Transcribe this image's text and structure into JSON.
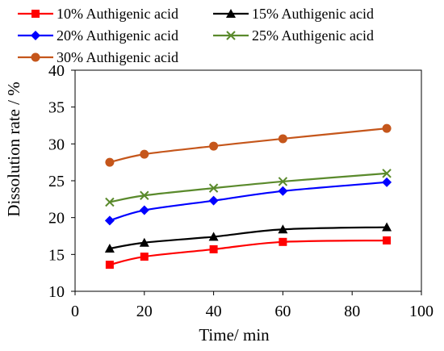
{
  "chart_data": {
    "type": "line",
    "xlabel": "Time/ min",
    "ylabel": "Dissolution rate / %",
    "xlim": [
      0,
      100
    ],
    "ylim": [
      10,
      40
    ],
    "xticks": [
      0,
      20,
      40,
      60,
      80,
      100
    ],
    "yticks": [
      10,
      15,
      20,
      25,
      30,
      35,
      40
    ],
    "legend_position": "top",
    "series": [
      {
        "name": "10% Authigenic acid",
        "color": "#ff0000",
        "marker": "square",
        "x": [
          10,
          20,
          40,
          60,
          90
        ],
        "values": [
          13.6,
          14.7,
          15.7,
          16.7,
          16.9
        ]
      },
      {
        "name": "15% Authigenic acid",
        "color": "#000000",
        "marker": "triangle",
        "x": [
          10,
          20,
          40,
          60,
          90
        ],
        "values": [
          15.8,
          16.6,
          17.4,
          18.4,
          18.7
        ]
      },
      {
        "name": "20% Authigenic acid",
        "color": "#0000ff",
        "marker": "diamond",
        "x": [
          10,
          20,
          40,
          60,
          90
        ],
        "values": [
          19.6,
          21.0,
          22.3,
          23.6,
          24.8
        ]
      },
      {
        "name": "25% Authigenic acid",
        "color": "#5a8a2c",
        "marker": "x",
        "x": [
          10,
          20,
          40,
          60,
          90
        ],
        "values": [
          22.1,
          23.0,
          24.0,
          24.9,
          26.0
        ]
      },
      {
        "name": "30% Authigenic acid",
        "color": "#c5561b",
        "marker": "circle",
        "x": [
          10,
          20,
          40,
          60,
          90
        ],
        "values": [
          27.5,
          28.6,
          29.7,
          30.7,
          32.1
        ]
      }
    ]
  }
}
